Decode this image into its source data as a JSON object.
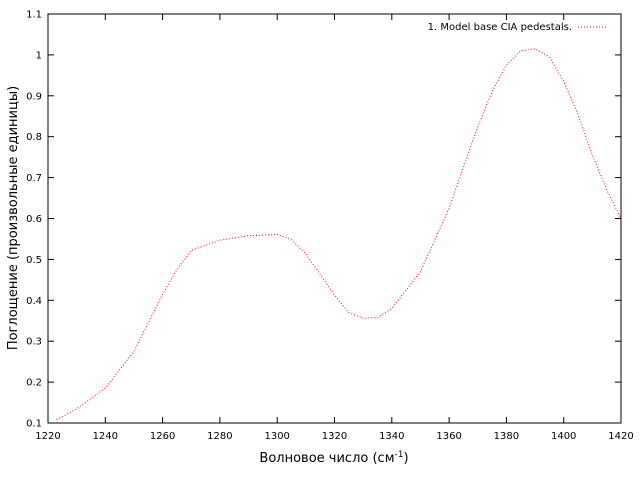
{
  "chart_data": {
    "type": "line",
    "title": "",
    "xlabel": "Волновое число (см",
    "xlabel_superscript": "-1",
    "xlabel_suffix": ")",
    "ylabel": "Поглощение (произвольные единицы)",
    "xlim": [
      1220,
      1420
    ],
    "ylim": [
      0.1,
      1.1
    ],
    "xticks": [
      "1220",
      "1240",
      "1260",
      "1280",
      "1300",
      "1320",
      "1340",
      "1360",
      "1380",
      "1400",
      "1420"
    ],
    "yticks": [
      "0.1",
      "0.2",
      "0.3",
      "0.4",
      "0.5",
      "0.6",
      "0.7",
      "0.8",
      "0.9",
      "1",
      "1.1"
    ],
    "grid": false,
    "legend_position": "top-right",
    "series": [
      {
        "name": "1. Model base CIA pedestals.",
        "color": "#ff0000",
        "line_style": "dotted",
        "x": [
          1223,
          1230,
          1240,
          1250,
          1260,
          1265,
          1270,
          1280,
          1290,
          1300,
          1305,
          1310,
          1320,
          1325,
          1330,
          1335,
          1340,
          1350,
          1360,
          1370,
          1375,
          1380,
          1385,
          1390,
          1395,
          1400,
          1405,
          1410,
          1415,
          1420
        ],
        "y": [
          0.108,
          0.135,
          0.185,
          0.275,
          0.415,
          0.475,
          0.522,
          0.547,
          0.558,
          0.561,
          0.548,
          0.513,
          0.413,
          0.37,
          0.356,
          0.358,
          0.38,
          0.47,
          0.625,
          0.825,
          0.91,
          0.975,
          1.01,
          1.015,
          0.995,
          0.935,
          0.855,
          0.755,
          0.67,
          0.6
        ]
      }
    ]
  }
}
